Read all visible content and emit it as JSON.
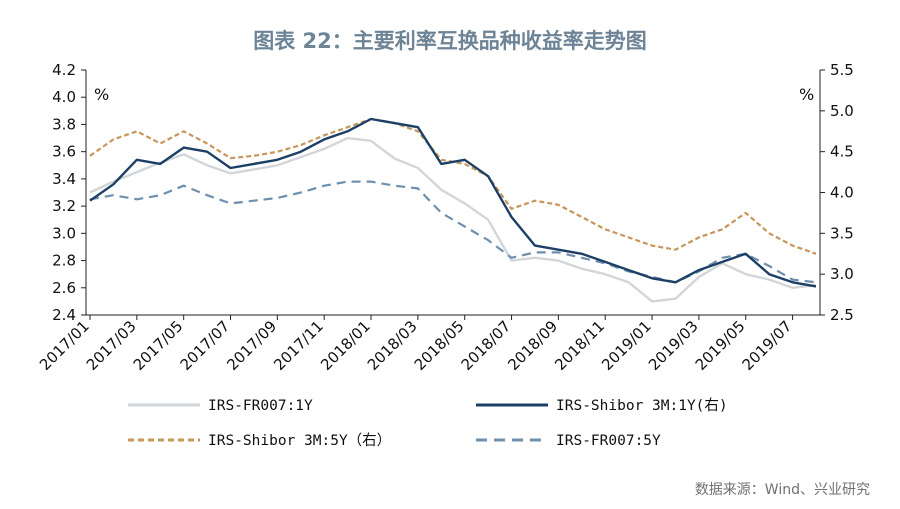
{
  "chart_data": {
    "type": "line",
    "title": "图表 22：主要利率互换品种收益率走势图",
    "source": "数据来源：Wind、兴业研究",
    "y_left": {
      "unit": "%",
      "ylim": [
        2.4,
        4.2
      ],
      "ticks": [
        "2.4",
        "2.6",
        "2.8",
        "3.0",
        "3.2",
        "3.4",
        "3.6",
        "3.8",
        "4.0",
        "4.2"
      ]
    },
    "y_right": {
      "unit": "%",
      "ylim": [
        2.5,
        5.5
      ],
      "ticks": [
        "2.5",
        "3.0",
        "3.5",
        "4.0",
        "4.5",
        "5.0",
        "5.5"
      ]
    },
    "x_ticks": [
      "2017/01",
      "2017/03",
      "2017/05",
      "2017/07",
      "2017/09",
      "2017/11",
      "2018/01",
      "2018/03",
      "2018/05",
      "2018/07",
      "2018/09",
      "2018/11",
      "2019/01",
      "2019/03",
      "2019/05",
      "2019/07"
    ],
    "x_months": [
      "2017-01",
      "2017-02",
      "2017-03",
      "2017-04",
      "2017-05",
      "2017-06",
      "2017-07",
      "2017-08",
      "2017-09",
      "2017-10",
      "2017-11",
      "2017-12",
      "2018-01",
      "2018-02",
      "2018-03",
      "2018-04",
      "2018-05",
      "2018-06",
      "2018-07",
      "2018-08",
      "2018-09",
      "2018-10",
      "2018-11",
      "2018-12",
      "2019-01",
      "2019-02",
      "2019-03",
      "2019-04",
      "2019-05",
      "2019-06",
      "2019-07",
      "2019-08"
    ],
    "grid": false,
    "legend_position": "bottom",
    "series": [
      {
        "name": "IRS-FR007:1Y",
        "axis": "left",
        "color": "#d3d6d9",
        "dash": "solid",
        "values": [
          3.3,
          3.38,
          3.45,
          3.52,
          3.58,
          3.5,
          3.44,
          3.47,
          3.5,
          3.56,
          3.62,
          3.7,
          3.68,
          3.55,
          3.48,
          3.32,
          3.22,
          3.1,
          2.8,
          2.82,
          2.8,
          2.74,
          2.7,
          2.64,
          2.5,
          2.52,
          2.68,
          2.78,
          2.7,
          2.66,
          2.6,
          2.62
        ]
      },
      {
        "name": "IRS-Shibor 3M:1Y(右)",
        "axis": "right",
        "color": "#1c3f66",
        "dash": "solid",
        "values": [
          3.9,
          4.1,
          4.4,
          4.35,
          4.55,
          4.5,
          4.3,
          4.35,
          4.4,
          4.5,
          4.65,
          4.75,
          4.9,
          4.85,
          4.8,
          4.35,
          4.4,
          4.2,
          3.7,
          3.35,
          3.3,
          3.25,
          3.15,
          3.05,
          2.95,
          2.9,
          3.05,
          3.15,
          3.25,
          3.0,
          2.9,
          2.85
        ]
      },
      {
        "name": "IRS-Shibor 3M:5Y（右）",
        "axis": "right",
        "color": "#c8955a",
        "dash": "dashed",
        "values": [
          4.45,
          4.65,
          4.75,
          4.6,
          4.75,
          4.6,
          4.42,
          4.45,
          4.5,
          4.58,
          4.7,
          4.8,
          4.9,
          4.85,
          4.75,
          4.4,
          4.35,
          4.2,
          3.8,
          3.9,
          3.85,
          3.7,
          3.55,
          3.45,
          3.35,
          3.3,
          3.45,
          3.55,
          3.75,
          3.5,
          3.35,
          3.25
        ]
      },
      {
        "name": "IRS-FR007:5Y",
        "axis": "left",
        "color": "#6f8fac",
        "dash": "dashed",
        "values": [
          3.25,
          3.28,
          3.25,
          3.28,
          3.35,
          3.28,
          3.22,
          3.24,
          3.26,
          3.3,
          3.35,
          3.38,
          3.38,
          3.35,
          3.33,
          3.15,
          3.05,
          2.95,
          2.82,
          2.86,
          2.86,
          2.82,
          2.78,
          2.72,
          2.68,
          2.64,
          2.72,
          2.82,
          2.85,
          2.76,
          2.66,
          2.64
        ]
      }
    ]
  }
}
